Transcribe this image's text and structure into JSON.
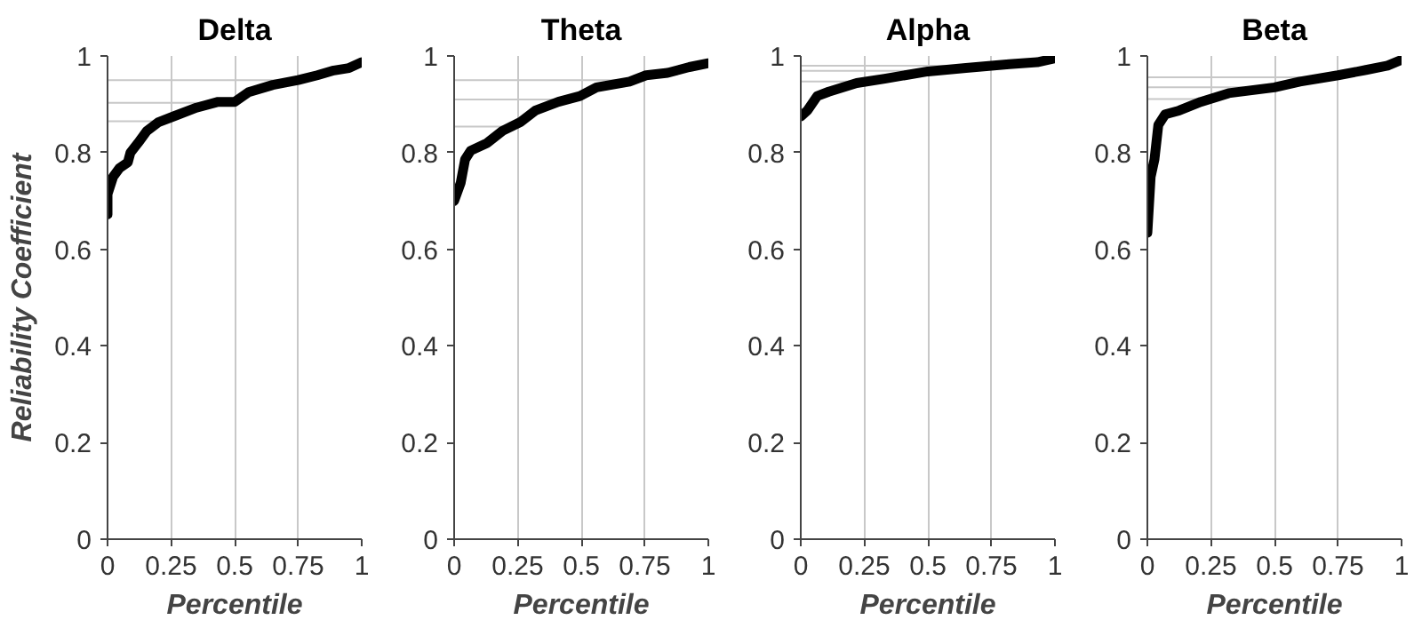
{
  "chart_data": [
    {
      "type": "line",
      "title": "Delta",
      "xlabel": "Percentile",
      "ylabel": "Reliability Coefficient",
      "xlim": [
        0,
        1
      ],
      "ylim": [
        0,
        1
      ],
      "xticks": [
        0,
        0.25,
        0.5,
        0.75,
        1
      ],
      "yticks": [
        0,
        0.2,
        0.4,
        0.6,
        0.8,
        1
      ],
      "grid": "x",
      "marker": "none",
      "line_style": "solid",
      "series": [
        {
          "color": "#000000",
          "x": [
            0,
            0,
            0.022,
            0.047,
            0.08,
            0.09,
            0.12,
            0.155,
            0.2,
            0.26,
            0.35,
            0.435,
            0.5,
            0.555,
            0.65,
            0.75,
            0.825,
            0.89,
            0.95,
            1
          ],
          "values": [
            0.672,
            0.714,
            0.75,
            0.768,
            0.78,
            0.8,
            0.82,
            0.845,
            0.863,
            0.875,
            0.893,
            0.905,
            0.905,
            0.925,
            0.94,
            0.95,
            0.96,
            0.97,
            0.975,
            0.987
          ]
        },
        {
          "color": "#c8c8c8",
          "x": [
            0,
            0.75
          ],
          "values": [
            0.95,
            0.95
          ]
        },
        {
          "color": "#c8c8c8",
          "x": [
            0,
            0.45
          ],
          "values": [
            0.903,
            0.903
          ]
        },
        {
          "color": "#c8c8c8",
          "x": [
            0,
            0.2
          ],
          "values": [
            0.865,
            0.865
          ]
        }
      ]
    },
    {
      "type": "line",
      "title": "Theta",
      "xlabel": "Percentile",
      "xlim": [
        0,
        1
      ],
      "ylim": [
        0,
        1
      ],
      "xticks": [
        0,
        0.25,
        0.5,
        0.75,
        1
      ],
      "yticks": [
        0,
        0.2,
        0.4,
        0.6,
        0.8,
        1
      ],
      "grid": "x",
      "marker": "none",
      "line_style": "solid",
      "series": [
        {
          "color": "#000000",
          "x": [
            0,
            0.026,
            0.043,
            0.065,
            0.13,
            0.19,
            0.26,
            0.32,
            0.41,
            0.495,
            0.56,
            0.69,
            0.755,
            0.84,
            0.925,
            1
          ],
          "values": [
            0.7,
            0.738,
            0.786,
            0.804,
            0.82,
            0.845,
            0.863,
            0.887,
            0.905,
            0.917,
            0.935,
            0.947,
            0.96,
            0.965,
            0.977,
            0.985
          ]
        },
        {
          "color": "#c8c8c8",
          "x": [
            0,
            0.75
          ],
          "values": [
            0.95,
            0.95
          ]
        },
        {
          "color": "#c8c8c8",
          "x": [
            0,
            0.48
          ],
          "values": [
            0.91,
            0.91
          ]
        },
        {
          "color": "#c8c8c8",
          "x": [
            0,
            0.19
          ],
          "values": [
            0.854,
            0.854
          ]
        }
      ]
    },
    {
      "type": "line",
      "title": "Alpha",
      "xlabel": "Percentile",
      "xlim": [
        0,
        1
      ],
      "ylim": [
        0,
        1
      ],
      "xticks": [
        0,
        0.25,
        0.5,
        0.75,
        1
      ],
      "yticks": [
        0,
        0.2,
        0.4,
        0.6,
        0.8,
        1
      ],
      "grid": "x",
      "marker": "none",
      "line_style": "solid",
      "series": [
        {
          "color": "#000000",
          "x": [
            0,
            0.026,
            0.065,
            0.11,
            0.22,
            0.33,
            0.5,
            0.65,
            0.82,
            0.93,
            1
          ],
          "values": [
            0.875,
            0.887,
            0.917,
            0.926,
            0.944,
            0.953,
            0.968,
            0.975,
            0.983,
            0.987,
            0.995
          ]
        },
        {
          "color": "#c8c8c8",
          "x": [
            0,
            0.75
          ],
          "values": [
            0.98,
            0.98
          ]
        },
        {
          "color": "#c8c8c8",
          "x": [
            0,
            0.5
          ],
          "values": [
            0.969,
            0.969
          ]
        },
        {
          "color": "#c8c8c8",
          "x": [
            0,
            0.25
          ],
          "values": [
            0.947,
            0.947
          ]
        }
      ]
    },
    {
      "type": "line",
      "title": "Beta",
      "xlabel": "Percentile",
      "xlim": [
        0,
        1
      ],
      "ylim": [
        0,
        1
      ],
      "xticks": [
        0,
        0.25,
        0.5,
        0.75,
        1
      ],
      "yticks": [
        0,
        0.2,
        0.4,
        0.6,
        0.8,
        1
      ],
      "grid": "x",
      "marker": "none",
      "line_style": "solid",
      "series": [
        {
          "color": "#000000",
          "x": [
            0,
            0.013,
            0.028,
            0.043,
            0.07,
            0.125,
            0.21,
            0.32,
            0.5,
            0.6,
            0.75,
            0.86,
            0.945,
            1
          ],
          "values": [
            0.634,
            0.75,
            0.786,
            0.857,
            0.879,
            0.887,
            0.905,
            0.923,
            0.935,
            0.947,
            0.96,
            0.971,
            0.98,
            0.992
          ]
        },
        {
          "color": "#c8c8c8",
          "x": [
            0,
            0.75
          ],
          "values": [
            0.956,
            0.956
          ]
        },
        {
          "color": "#c8c8c8",
          "x": [
            0,
            0.5
          ],
          "values": [
            0.935,
            0.935
          ]
        },
        {
          "color": "#c8c8c8",
          "x": [
            0,
            0.25
          ],
          "values": [
            0.911,
            0.911
          ]
        }
      ]
    }
  ]
}
